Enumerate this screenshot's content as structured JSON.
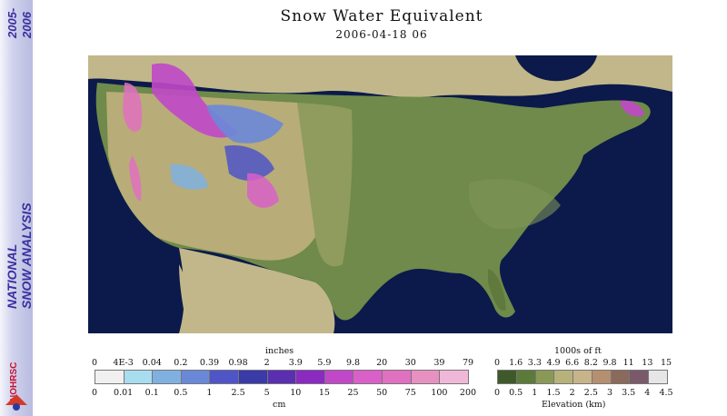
{
  "sidebar": {
    "line1": "NATIONAL",
    "line2": "SNOW ANALYSIS",
    "year_start": "2005-",
    "year_end": "2006",
    "logo_text": "NOHRSC"
  },
  "header": {
    "title": "Snow Water Equivalent",
    "date": "2006-04-18 06"
  },
  "legend_swe": {
    "top_unit": "inches",
    "top_ticks": [
      "0",
      "4E-3",
      "0.04",
      "0.2",
      "0.39",
      "0.98",
      "2",
      "3.9",
      "5.9",
      "9.8",
      "20",
      "30",
      "39",
      "79"
    ],
    "bottom_ticks": [
      "0",
      "0.01",
      "0.1",
      "0.5",
      "1",
      "2.5",
      "5",
      "10",
      "15",
      "25",
      "50",
      "75",
      "100",
      "200"
    ],
    "bottom_unit": "cm",
    "colors": [
      "#f0f0f0",
      "#a8dcef",
      "#7fb0e0",
      "#6a88d8",
      "#4f55c6",
      "#3a3aa8",
      "#5a2fb0",
      "#8a2ac0",
      "#c048c8",
      "#d860c8",
      "#e070c0",
      "#e890c0",
      "#f0b8d8"
    ]
  },
  "legend_elev": {
    "top_unit": "1000s of ft",
    "top_ticks": [
      "0",
      "1.6",
      "3.3",
      "4.9",
      "6.6",
      "8.2",
      "9.8",
      "11",
      "13",
      "15"
    ],
    "bottom_ticks": [
      "0",
      "0.5",
      "1",
      "1.5",
      "2",
      "2.5",
      "3",
      "3.5",
      "4",
      "4.5"
    ],
    "bottom_unit": "Elevation (km)",
    "colors": [
      "#3f5a2a",
      "#5c7a3a",
      "#8a9a56",
      "#b6b27a",
      "#c8b48a",
      "#b49070",
      "#8a6a5a",
      "#7a5a6a",
      "#e6e6e6"
    ]
  }
}
